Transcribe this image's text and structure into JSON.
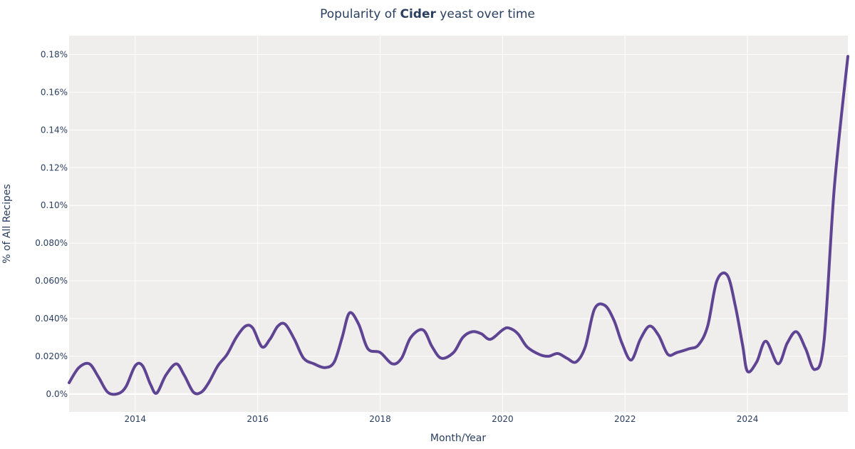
{
  "chart_data": {
    "type": "line",
    "title": {
      "prefix": "Popularity of ",
      "highlight": "Cider",
      "suffix": " yeast over time"
    },
    "xlabel": "Month/Year",
    "ylabel": "% of All Recipes",
    "xlim": [
      2012.92,
      2025.64
    ],
    "ylim": [
      -0.0095,
      0.19
    ],
    "x_ticks": [
      2014,
      2016,
      2018,
      2020,
      2022,
      2024
    ],
    "x_tick_labels": [
      "2014",
      "2016",
      "2018",
      "2020",
      "2022",
      "2024"
    ],
    "y_ticks": [
      0,
      0.02,
      0.04,
      0.06,
      0.08,
      0.1,
      0.12,
      0.14,
      0.16,
      0.18
    ],
    "y_tick_labels": [
      "0.0%",
      "0.020%",
      "0.040%",
      "0.060%",
      "0.080%",
      "0.10%",
      "0.12%",
      "0.14%",
      "0.16%",
      "0.18%"
    ],
    "grid": true,
    "plot_background": "#efeeed",
    "series": [
      {
        "color": "#5e4492",
        "x": [
          2012.92,
          2013.08,
          2013.25,
          2013.4,
          2013.55,
          2013.72,
          2013.85,
          2014.0,
          2014.12,
          2014.25,
          2014.35,
          2014.5,
          2014.67,
          2014.8,
          2014.95,
          2015.08,
          2015.2,
          2015.35,
          2015.5,
          2015.65,
          2015.8,
          2015.92,
          2016.07,
          2016.2,
          2016.33,
          2016.45,
          2016.6,
          2016.75,
          2016.92,
          2017.1,
          2017.25,
          2017.38,
          2017.5,
          2017.65,
          2017.8,
          2018.0,
          2018.2,
          2018.35,
          2018.5,
          2018.7,
          2018.85,
          2019.0,
          2019.2,
          2019.35,
          2019.5,
          2019.65,
          2019.8,
          2020.0,
          2020.1,
          2020.25,
          2020.4,
          2020.6,
          2020.75,
          2020.9,
          2021.05,
          2021.2,
          2021.35,
          2021.5,
          2021.67,
          2021.82,
          2021.95,
          2022.1,
          2022.25,
          2022.4,
          2022.55,
          2022.7,
          2022.85,
          2023.05,
          2023.2,
          2023.35,
          2023.5,
          2023.67,
          2023.8,
          2023.92,
          2024.0,
          2024.15,
          2024.3,
          2024.5,
          2024.65,
          2024.8,
          2024.95,
          2025.1,
          2025.25,
          2025.42,
          2025.64
        ],
        "y": [
          0.006,
          0.014,
          0.016,
          0.009,
          0.001,
          0.0002,
          0.004,
          0.015,
          0.015,
          0.005,
          0.0005,
          0.01,
          0.016,
          0.01,
          0.001,
          0.001,
          0.006,
          0.015,
          0.021,
          0.03,
          0.036,
          0.035,
          0.025,
          0.029,
          0.036,
          0.037,
          0.029,
          0.019,
          0.016,
          0.014,
          0.017,
          0.03,
          0.043,
          0.037,
          0.024,
          0.022,
          0.016,
          0.019,
          0.03,
          0.034,
          0.025,
          0.019,
          0.022,
          0.03,
          0.033,
          0.032,
          0.029,
          0.034,
          0.035,
          0.032,
          0.025,
          0.021,
          0.02,
          0.0215,
          0.019,
          0.017,
          0.025,
          0.045,
          0.047,
          0.039,
          0.027,
          0.018,
          0.029,
          0.036,
          0.031,
          0.021,
          0.022,
          0.024,
          0.026,
          0.036,
          0.06,
          0.063,
          0.047,
          0.026,
          0.012,
          0.017,
          0.028,
          0.016,
          0.027,
          0.033,
          0.024,
          0.013,
          0.028,
          0.11,
          0.179
        ]
      }
    ]
  }
}
